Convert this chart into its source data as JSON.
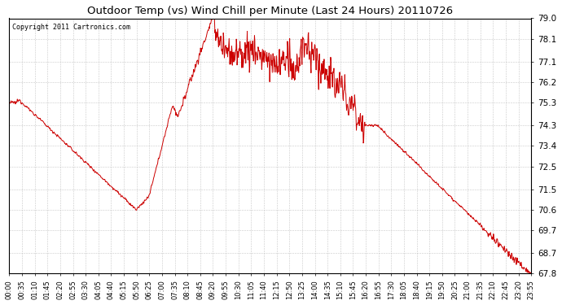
{
  "title": "Outdoor Temp (vs) Wind Chill per Minute (Last 24 Hours) 20110726",
  "copyright_text": "Copyright 2011 Cartronics.com",
  "line_color": "#cc0000",
  "bg_color": "#ffffff",
  "plot_bg_color": "#ffffff",
  "grid_color": "#bbbbbb",
  "ylim": [
    67.8,
    79.0
  ],
  "yticks": [
    67.8,
    68.7,
    69.7,
    70.6,
    71.5,
    72.5,
    73.4,
    74.3,
    75.3,
    76.2,
    77.1,
    78.1,
    79.0
  ],
  "xtick_labels": [
    "00:00",
    "00:35",
    "01:10",
    "01:45",
    "02:20",
    "02:55",
    "03:30",
    "04:05",
    "04:40",
    "05:15",
    "05:50",
    "06:25",
    "07:00",
    "07:35",
    "08:10",
    "08:45",
    "09:20",
    "09:55",
    "10:30",
    "11:05",
    "11:40",
    "12:15",
    "12:50",
    "13:25",
    "14:00",
    "14:35",
    "15:10",
    "15:45",
    "16:20",
    "16:55",
    "17:30",
    "18:05",
    "18:40",
    "19:15",
    "19:50",
    "20:25",
    "21:00",
    "21:35",
    "22:10",
    "22:45",
    "23:20",
    "23:55"
  ],
  "figsize": [
    6.9,
    3.75
  ],
  "dpi": 100
}
